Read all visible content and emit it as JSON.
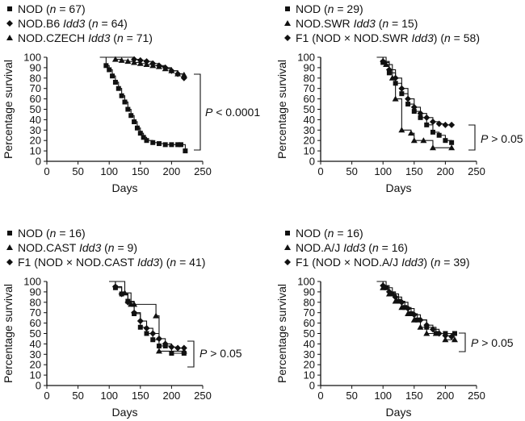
{
  "chart_data": [
    {
      "type": "line",
      "panel": "top-left",
      "xlabel": "Days",
      "ylabel": "Percentage survival",
      "xlim": [
        0,
        250
      ],
      "ylim": [
        0,
        100
      ],
      "xticks": [
        0,
        50,
        100,
        150,
        200,
        250
      ],
      "yticks": [
        0,
        10,
        20,
        30,
        40,
        50,
        60,
        70,
        80,
        90,
        100
      ],
      "legend": [
        {
          "marker": "square",
          "name": "NOD",
          "strain": "",
          "n": 67
        },
        {
          "marker": "diamond",
          "name": "NOD.B6",
          "strain": "Idd3",
          "n": 64
        },
        {
          "marker": "triangle",
          "name": "NOD.CZECH",
          "strain": "Idd3",
          "n": 71
        }
      ],
      "p_value": "P < 0.0001",
      "series": [
        {
          "name": "NOD",
          "marker": "square",
          "x": [
            85,
            95,
            100,
            105,
            110,
            115,
            120,
            125,
            130,
            135,
            140,
            145,
            150,
            155,
            160,
            170,
            180,
            190,
            200,
            210,
            215,
            222
          ],
          "y": [
            100,
            92,
            88,
            82,
            76,
            70,
            63,
            57,
            50,
            44,
            38,
            32,
            27,
            23,
            20,
            18,
            17,
            16,
            16,
            16,
            16,
            10
          ]
        },
        {
          "name": "NOD.B6 Idd3",
          "marker": "diamond",
          "x": [
            100,
            140,
            150,
            160,
            170,
            180,
            190,
            200,
            210,
            220
          ],
          "y": [
            100,
            98,
            97,
            96,
            94,
            92,
            90,
            87,
            84,
            80
          ]
        },
        {
          "name": "NOD.CZECH Idd3",
          "marker": "triangle",
          "x": [
            90,
            110,
            120,
            130,
            140,
            150,
            160,
            170,
            180,
            190,
            200,
            210,
            220
          ],
          "y": [
            100,
            98,
            97,
            96,
            95,
            94,
            93,
            92,
            91,
            89,
            87,
            84,
            83
          ]
        }
      ]
    },
    {
      "type": "line",
      "panel": "top-right",
      "xlabel": "Days",
      "ylabel": "Percentage survival",
      "xlim": [
        0,
        250
      ],
      "ylim": [
        0,
        100
      ],
      "xticks": [
        0,
        50,
        100,
        150,
        200,
        250
      ],
      "yticks": [
        0,
        10,
        20,
        30,
        40,
        50,
        60,
        70,
        80,
        90,
        100
      ],
      "legend": [
        {
          "marker": "square",
          "name": "NOD",
          "strain": "",
          "n": 29
        },
        {
          "marker": "triangle",
          "name": "NOD.SWR",
          "strain": "Idd3",
          "n": 15
        },
        {
          "marker": "diamond",
          "name": "F1 (NOD × NOD.SWR",
          "strain": "Idd3",
          "suffix": ")",
          "n": 58
        }
      ],
      "p_value": "P > 0.05",
      "series": [
        {
          "name": "NOD",
          "marker": "square",
          "x": [
            90,
            100,
            110,
            120,
            130,
            140,
            150,
            160,
            170,
            180,
            190,
            200,
            210
          ],
          "y": [
            100,
            95,
            85,
            75,
            65,
            55,
            48,
            42,
            35,
            28,
            25,
            20,
            18
          ]
        },
        {
          "name": "NOD.SWR Idd3",
          "marker": "triangle",
          "x": [
            95,
            105,
            115,
            120,
            130,
            145,
            150,
            165,
            180,
            210
          ],
          "y": [
            100,
            93,
            80,
            60,
            30,
            27,
            20,
            20,
            13,
            13
          ]
        },
        {
          "name": "F1 (NOD × NOD.SWR Idd3)",
          "marker": "diamond",
          "x": [
            90,
            100,
            110,
            120,
            130,
            140,
            150,
            160,
            170,
            180,
            190,
            200,
            210
          ],
          "y": [
            100,
            96,
            88,
            80,
            70,
            60,
            52,
            46,
            42,
            38,
            36,
            35,
            35
          ]
        }
      ]
    },
    {
      "type": "line",
      "panel": "bottom-left",
      "xlabel": "Days",
      "ylabel": "Percentage survival",
      "xlim": [
        0,
        250
      ],
      "ylim": [
        0,
        100
      ],
      "xticks": [
        0,
        50,
        100,
        150,
        200,
        250
      ],
      "yticks": [
        0,
        10,
        20,
        30,
        40,
        50,
        60,
        70,
        80,
        90,
        100
      ],
      "legend": [
        {
          "marker": "square",
          "name": "NOD",
          "strain": "",
          "n": 16
        },
        {
          "marker": "triangle",
          "name": "NOD.CAST",
          "strain": "Idd3",
          "n": 9
        },
        {
          "marker": "diamond",
          "name": "F1 (NOD × NOD.CAST",
          "strain": "Idd3",
          "suffix": ")",
          "n": 41
        }
      ],
      "p_value": "P > 0.05",
      "series": [
        {
          "name": "NOD",
          "marker": "square",
          "x": [
            100,
            110,
            120,
            130,
            140,
            150,
            160,
            170,
            180,
            190,
            200,
            220
          ],
          "y": [
            100,
            94,
            88,
            81,
            69,
            56,
            50,
            44,
            38,
            38,
            31,
            31
          ]
        },
        {
          "name": "NOD.CAST Idd3",
          "marker": "triangle",
          "x": [
            100,
            125,
            135,
            140,
            175,
            180,
            220
          ],
          "y": [
            100,
            89,
            78,
            78,
            67,
            33,
            33
          ]
        },
        {
          "name": "F1 (NOD × NOD.CAST Idd3)",
          "marker": "diamond",
          "x": [
            100,
            110,
            120,
            130,
            140,
            150,
            160,
            170,
            180,
            190,
            200,
            210,
            220
          ],
          "y": [
            100,
            95,
            88,
            80,
            70,
            62,
            55,
            50,
            45,
            40,
            37,
            36,
            36
          ]
        }
      ]
    },
    {
      "type": "line",
      "panel": "bottom-right",
      "xlabel": "Days",
      "ylabel": "Percentage survival",
      "xlim": [
        0,
        250
      ],
      "ylim": [
        0,
        100
      ],
      "xticks": [
        0,
        50,
        100,
        150,
        200,
        250
      ],
      "yticks": [
        0,
        10,
        20,
        30,
        40,
        50,
        60,
        70,
        80,
        90,
        100
      ],
      "legend": [
        {
          "marker": "square",
          "name": "NOD",
          "strain": "",
          "n": 16
        },
        {
          "marker": "triangle",
          "name": "NOD.A/J",
          "strain": "Idd3",
          "n": 16
        },
        {
          "marker": "diamond",
          "name": "F1 (NOD × NOD.A/J",
          "strain": "Idd3",
          "suffix": ")",
          "n": 39
        }
      ],
      "p_value": "P > 0.05",
      "series": [
        {
          "name": "NOD",
          "marker": "square",
          "x": [
            90,
            105,
            115,
            125,
            135,
            145,
            155,
            170,
            185,
            200,
            215
          ],
          "y": [
            100,
            94,
            88,
            81,
            75,
            69,
            63,
            56,
            50,
            50,
            50
          ]
        },
        {
          "name": "NOD.A/J Idd3",
          "marker": "triangle",
          "x": [
            90,
            100,
            110,
            120,
            130,
            140,
            150,
            160,
            170,
            185,
            200,
            215
          ],
          "y": [
            100,
            94,
            88,
            81,
            75,
            69,
            63,
            56,
            50,
            50,
            44,
            44
          ]
        },
        {
          "name": "F1 (NOD × NOD.A/J Idd3)",
          "marker": "diamond",
          "x": [
            90,
            100,
            110,
            120,
            130,
            140,
            150,
            160,
            170,
            180,
            190,
            200,
            210
          ],
          "y": [
            100,
            96,
            90,
            85,
            80,
            74,
            68,
            63,
            58,
            54,
            50,
            48,
            47
          ]
        }
      ]
    }
  ]
}
